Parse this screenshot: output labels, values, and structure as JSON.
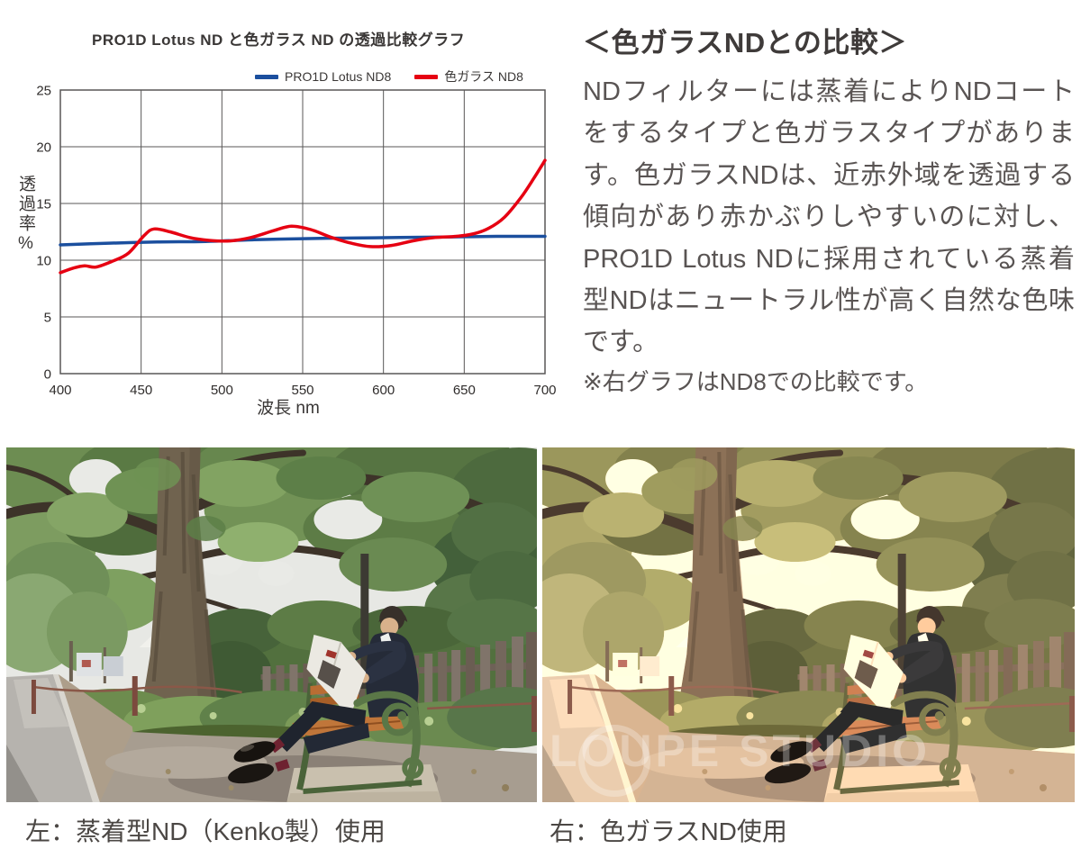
{
  "chart": {
    "title": "PRO1D Lotus ND と色ガラス ND の透過比較グラフ"
  },
  "chart_data": {
    "type": "line",
    "title": "PRO1D Lotus ND と色ガラス ND の透過比較グラフ",
    "xlabel": "波長 nm",
    "ylabel": "透過率%",
    "xlim": [
      400,
      700
    ],
    "ylim": [
      0,
      25
    ],
    "xticks": [
      400,
      450,
      500,
      550,
      600,
      650,
      700
    ],
    "yticks": [
      0,
      5,
      10,
      15,
      20,
      25
    ],
    "grid": true,
    "legend_position": "top-right",
    "frame_color": "#595757",
    "series": [
      {
        "name": "PRO1D Lotus ND8",
        "color": "#1b4f9e",
        "x": [
          400,
          430,
          460,
          490,
          520,
          550,
          580,
          610,
          640,
          670,
          700
        ],
        "y": [
          11.35,
          11.5,
          11.6,
          11.65,
          11.8,
          11.9,
          11.95,
          12.0,
          12.05,
          12.1,
          12.1
        ]
      },
      {
        "name": "色ガラス ND8",
        "color": "#e60012",
        "x": [
          400,
          408,
          415,
          422,
          432,
          442,
          452,
          458,
          468,
          480,
          492,
          505,
          518,
          532,
          543,
          555,
          568,
          580,
          592,
          605,
          618,
          632,
          645,
          655,
          665,
          675,
          685,
          693,
          700
        ],
        "y": [
          8.9,
          9.3,
          9.5,
          9.4,
          9.9,
          10.6,
          12.2,
          12.75,
          12.5,
          12.0,
          11.75,
          11.7,
          12.0,
          12.6,
          13.0,
          12.7,
          12.0,
          11.5,
          11.2,
          11.3,
          11.7,
          12.0,
          12.1,
          12.3,
          12.8,
          13.8,
          15.5,
          17.2,
          18.8
        ]
      }
    ]
  },
  "description": {
    "heading": "＜色ガラスNDとの比較＞",
    "body": "NDフィルターには蒸着によりNDコートをするタイプと色ガラスタイプがあります。色ガラスNDは、近赤外域を透過する傾向があり赤かぶりしやすいのに対し、PRO1D Lotus NDに採用されている蒸着型NDはニュートラル性が高く自然な色味です。",
    "note": "※右グラフはND8での比較です。"
  },
  "photos": {
    "left_caption": "左：蒸着型ND（Kenko製）使用",
    "right_caption": "右：色ガラスND使用",
    "watermark": "LOUPE STUDIO"
  }
}
